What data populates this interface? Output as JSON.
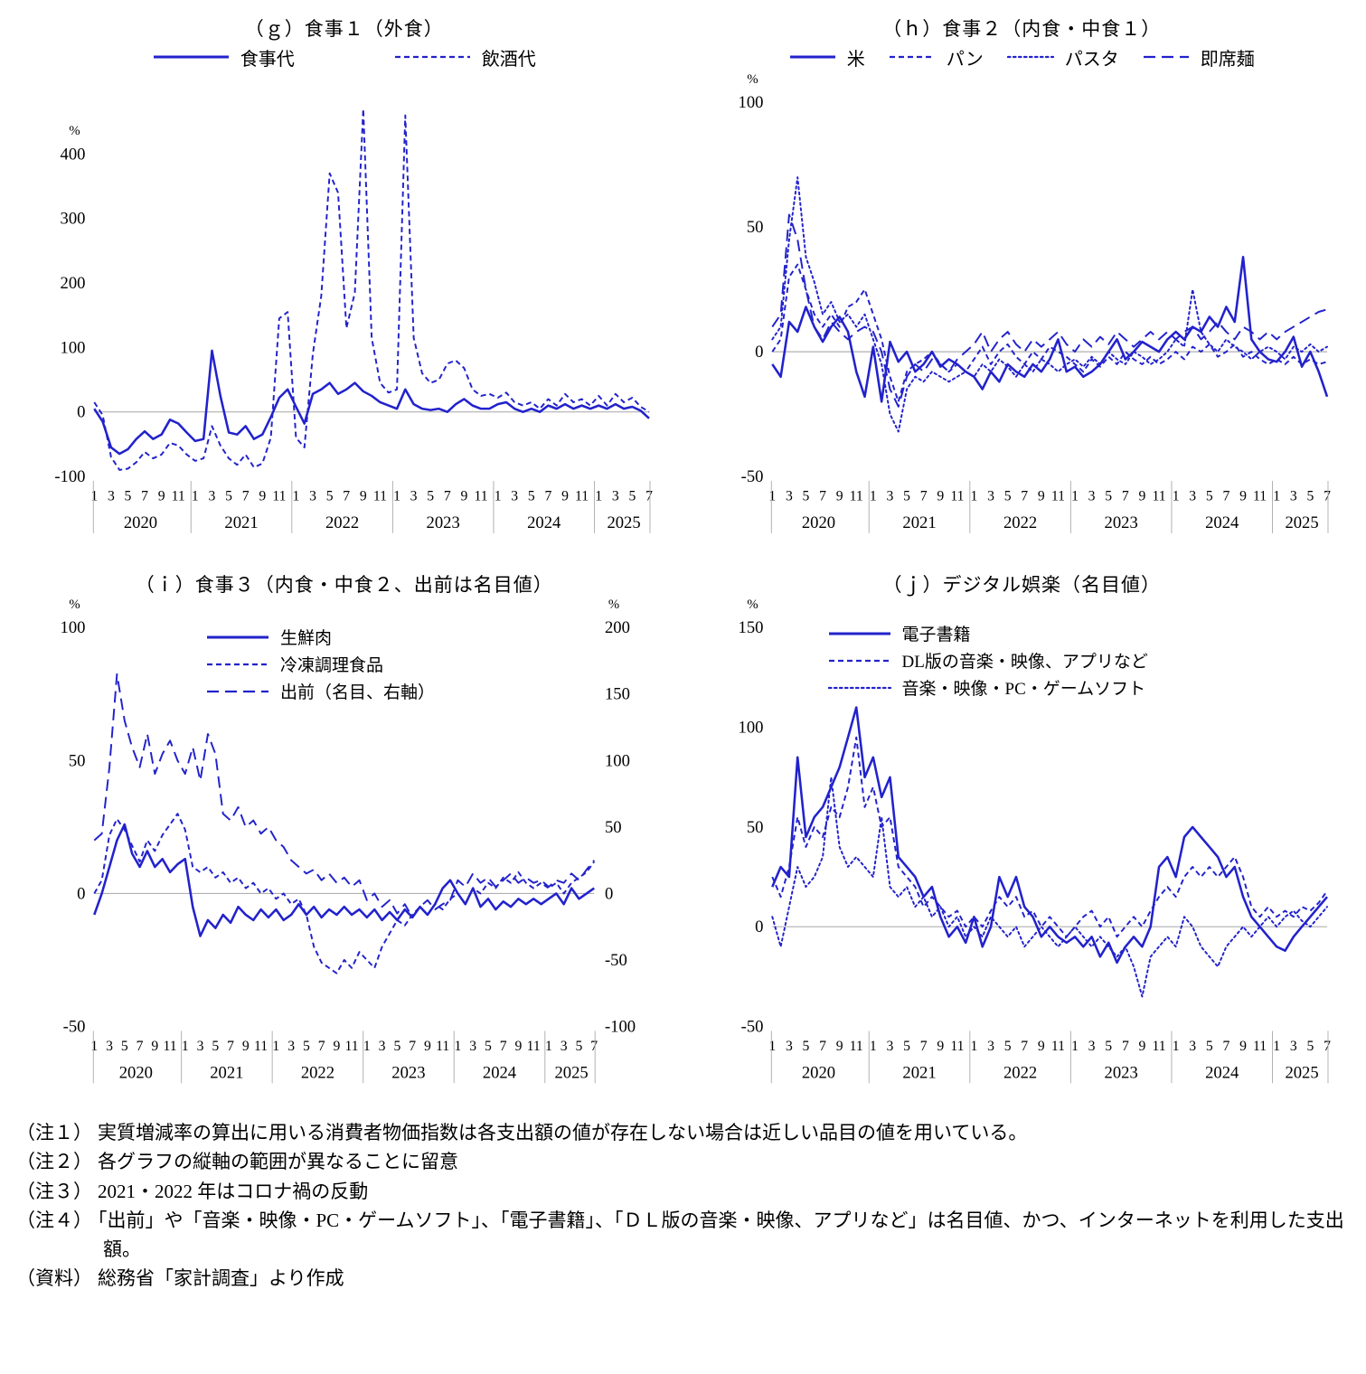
{
  "accent": "#2222cc",
  "grid_color": "#b0b0b0",
  "x_axis": {
    "years": [
      {
        "year": "2020",
        "months": [
          1,
          3,
          5,
          7,
          9,
          11
        ],
        "span": 12
      },
      {
        "year": "2021",
        "months": [
          1,
          3,
          5,
          7,
          9,
          11
        ],
        "span": 12
      },
      {
        "year": "2022",
        "months": [
          1,
          3,
          5,
          7,
          9,
          11
        ],
        "span": 12
      },
      {
        "year": "2023",
        "months": [
          1,
          3,
          5,
          7,
          9,
          11
        ],
        "span": 12
      },
      {
        "year": "2024",
        "months": [
          1,
          3,
          5,
          7,
          9,
          11
        ],
        "span": 12
      },
      {
        "year": "2025",
        "months": [
          1,
          3,
          5,
          7
        ],
        "span": 7
      }
    ]
  },
  "chart_data": [
    {
      "id": "g",
      "type": "line",
      "title": "（ｇ）食事１（外食）",
      "unit": "%",
      "ylim": [
        -100,
        480
      ],
      "yticks": [
        -100,
        0,
        100,
        200,
        300,
        400
      ],
      "legend_position": "top",
      "series": [
        {
          "name": "食事代",
          "style": "solid",
          "axis": "left",
          "values": [
            5,
            -15,
            -55,
            -65,
            -58,
            -42,
            -30,
            -42,
            -35,
            -12,
            -18,
            -32,
            -45,
            -42,
            95,
            25,
            -32,
            -35,
            -22,
            -42,
            -35,
            -8,
            22,
            35,
            8,
            -18,
            28,
            35,
            45,
            28,
            35,
            45,
            32,
            25,
            15,
            10,
            5,
            35,
            12,
            5,
            3,
            5,
            0,
            12,
            20,
            10,
            5,
            5,
            12,
            15,
            5,
            0,
            5,
            0,
            10,
            5,
            12,
            5,
            10,
            5,
            10,
            5,
            12,
            5,
            8,
            2,
            -10
          ]
        },
        {
          "name": "飲酒代",
          "style": "dashed",
          "axis": "left",
          "values": [
            15,
            -5,
            -70,
            -90,
            -88,
            -78,
            -62,
            -72,
            -66,
            -48,
            -52,
            -66,
            -76,
            -72,
            -22,
            -52,
            -72,
            -82,
            -66,
            -86,
            -80,
            -40,
            145,
            155,
            -40,
            -55,
            90,
            180,
            370,
            340,
            130,
            185,
            470,
            115,
            45,
            30,
            35,
            460,
            115,
            60,
            45,
            50,
            75,
            80,
            68,
            35,
            25,
            28,
            22,
            30,
            15,
            10,
            15,
            5,
            20,
            10,
            28,
            15,
            20,
            10,
            25,
            10,
            28,
            15,
            22,
            8,
            0
          ]
        }
      ]
    },
    {
      "id": "h",
      "type": "line",
      "title": "（ｈ）食事２（内食・中食１）",
      "unit": "%",
      "ylim": [
        -50,
        100
      ],
      "yticks": [
        -50,
        0,
        50,
        100
      ],
      "legend_position": "top",
      "series": [
        {
          "name": "米",
          "style": "solid",
          "axis": "left",
          "values": [
            -5,
            -10,
            12,
            8,
            18,
            10,
            4,
            10,
            14,
            8,
            -8,
            -18,
            2,
            -20,
            4,
            -4,
            0,
            -8,
            -5,
            0,
            -6,
            -3,
            -5,
            -8,
            -10,
            -15,
            -8,
            -12,
            -5,
            -8,
            -10,
            -5,
            -8,
            -3,
            5,
            -8,
            -6,
            -10,
            -8,
            -5,
            0,
            5,
            -3,
            0,
            4,
            2,
            0,
            5,
            8,
            5,
            10,
            8,
            14,
            10,
            18,
            12,
            38,
            5,
            0,
            -3,
            -4,
            0,
            6,
            -6,
            0,
            -8,
            -18
          ]
        },
        {
          "name": "パン",
          "style": "dashed",
          "axis": "left",
          "values": [
            0,
            5,
            30,
            35,
            25,
            15,
            10,
            15,
            10,
            18,
            20,
            25,
            15,
            5,
            -10,
            -20,
            -8,
            -5,
            -3,
            0,
            -5,
            -8,
            -5,
            -8,
            -3,
            2,
            -5,
            0,
            3,
            -2,
            -5,
            0,
            -3,
            2,
            0,
            -2,
            -5,
            -8,
            -3,
            -6,
            -2,
            -5,
            0,
            -3,
            -5,
            -2,
            -5,
            -3,
            0,
            -3,
            2,
            0,
            3,
            -2,
            0,
            3,
            -2,
            0,
            -3,
            -5,
            -3,
            -5,
            -2,
            -5,
            -3,
            -5,
            -4
          ]
        },
        {
          "name": "パスタ",
          "style": "dotted",
          "axis": "left",
          "values": [
            5,
            10,
            45,
            70,
            38,
            28,
            15,
            20,
            12,
            15,
            10,
            15,
            5,
            -5,
            -25,
            -32,
            -15,
            -10,
            -12,
            -8,
            -10,
            -12,
            -10,
            -8,
            -10,
            -5,
            -8,
            -3,
            -6,
            -10,
            -5,
            -8,
            -3,
            -5,
            -8,
            -5,
            -3,
            -6,
            -2,
            -5,
            0,
            -3,
            -5,
            0,
            -2,
            -5,
            -3,
            0,
            5,
            2,
            25,
            8,
            3,
            0,
            5,
            2,
            0,
            -3,
            0,
            2,
            0,
            -3,
            2,
            0,
            3,
            0,
            2
          ]
        },
        {
          "name": "即席麺",
          "style": "longdash",
          "axis": "left",
          "values": [
            10,
            15,
            55,
            45,
            25,
            10,
            5,
            12,
            8,
            5,
            8,
            10,
            8,
            0,
            -15,
            -22,
            -10,
            -5,
            -8,
            -3,
            -5,
            -8,
            -3,
            0,
            3,
            8,
            0,
            5,
            8,
            3,
            0,
            5,
            2,
            5,
            8,
            3,
            0,
            5,
            2,
            6,
            3,
            8,
            5,
            2,
            5,
            8,
            5,
            8,
            5,
            8,
            10,
            5,
            8,
            12,
            8,
            5,
            10,
            8,
            5,
            8,
            5,
            8,
            10,
            12,
            14,
            16,
            17
          ]
        }
      ]
    },
    {
      "id": "i",
      "type": "line",
      "title": "（ｉ）食事３（内食・中食２、出前は名目値）",
      "unit": "%",
      "ylim": [
        -50,
        100
      ],
      "yticks": [
        -50,
        0,
        50,
        100
      ],
      "right_unit": "%",
      "right_ylim": [
        -100,
        200
      ],
      "right_yticks": [
        -100,
        -50,
        0,
        50,
        100,
        150,
        200
      ],
      "legend_position": "overlay",
      "series": [
        {
          "name": "生鮮肉",
          "style": "solid",
          "axis": "left",
          "values": [
            -8,
            0,
            10,
            20,
            26,
            15,
            10,
            16,
            10,
            13,
            8,
            11,
            13,
            -5,
            -16,
            -10,
            -13,
            -8,
            -11,
            -5,
            -8,
            -10,
            -6,
            -9,
            -6,
            -10,
            -8,
            -4,
            -8,
            -5,
            -9,
            -6,
            -8,
            -5,
            -8,
            -6,
            -9,
            -6,
            -10,
            -7,
            -10,
            -6,
            -9,
            -5,
            -8,
            -4,
            2,
            5,
            0,
            -4,
            2,
            -5,
            -2,
            -6,
            -3,
            -5,
            -2,
            -4,
            -2,
            -4,
            -2,
            0,
            -4,
            2,
            -2,
            0,
            2
          ]
        },
        {
          "name": "冷凍調理食品",
          "style": "dashed",
          "axis": "left",
          "values": [
            0,
            5,
            22,
            28,
            24,
            18,
            12,
            20,
            16,
            22,
            26,
            30,
            24,
            10,
            8,
            10,
            6,
            8,
            4,
            6,
            2,
            4,
            0,
            2,
            -2,
            0,
            -4,
            -2,
            -8,
            -20,
            -26,
            -28,
            -30,
            -25,
            -28,
            -22,
            -25,
            -28,
            -20,
            -15,
            -10,
            -12,
            -8,
            -5,
            -8,
            -4,
            -6,
            -2,
            0,
            -4,
            2,
            0,
            4,
            2,
            6,
            4,
            8,
            4,
            2,
            4,
            2,
            4,
            0,
            4,
            6,
            8,
            12
          ]
        },
        {
          "name": "出前（名目、右軸）",
          "style": "longdash",
          "axis": "right",
          "values": [
            40,
            45,
            95,
            165,
            130,
            110,
            95,
            120,
            90,
            105,
            115,
            100,
            90,
            110,
            85,
            120,
            105,
            60,
            55,
            65,
            50,
            55,
            45,
            50,
            40,
            35,
            25,
            20,
            15,
            18,
            10,
            15,
            8,
            12,
            5,
            10,
            -5,
            0,
            -10,
            -5,
            -15,
            -8,
            -18,
            -10,
            -5,
            -12,
            -8,
            -5,
            10,
            5,
            15,
            8,
            12,
            5,
            10,
            15,
            8,
            12,
            8,
            10,
            5,
            10,
            8,
            15,
            10,
            18,
            25
          ]
        }
      ]
    },
    {
      "id": "j",
      "type": "line",
      "title": "（ｊ）デジタル娯楽（名目値）",
      "unit": "%",
      "ylim": [
        -50,
        150
      ],
      "yticks": [
        -50,
        0,
        50,
        100,
        150
      ],
      "legend_position": "overlay",
      "series": [
        {
          "name": "電子書籍",
          "style": "solid",
          "axis": "left",
          "values": [
            20,
            30,
            25,
            85,
            45,
            55,
            60,
            70,
            80,
            95,
            110,
            75,
            85,
            65,
            75,
            35,
            30,
            25,
            15,
            20,
            5,
            -5,
            0,
            -8,
            5,
            -10,
            0,
            25,
            15,
            25,
            10,
            5,
            -5,
            0,
            -5,
            -8,
            -5,
            -10,
            -5,
            -15,
            -8,
            -18,
            -10,
            -5,
            -10,
            0,
            30,
            35,
            25,
            45,
            50,
            45,
            40,
            35,
            25,
            30,
            15,
            5,
            0,
            -5,
            -10,
            -12,
            -5,
            0,
            5,
            10,
            15
          ]
        },
        {
          "name": "DL版の音楽・映像、アプリなど",
          "style": "dashed",
          "axis": "left",
          "values": [
            25,
            15,
            30,
            55,
            40,
            50,
            45,
            60,
            55,
            70,
            95,
            60,
            70,
            50,
            55,
            30,
            25,
            20,
            10,
            15,
            10,
            5,
            8,
            0,
            5,
            0,
            8,
            15,
            10,
            15,
            5,
            8,
            0,
            5,
            0,
            -5,
            0,
            5,
            8,
            0,
            5,
            -5,
            0,
            5,
            0,
            8,
            15,
            20,
            15,
            25,
            30,
            25,
            30,
            25,
            30,
            35,
            25,
            10,
            5,
            10,
            5,
            8,
            5,
            10,
            8,
            12,
            18
          ]
        },
        {
          "name": "音楽・映像・PC・ゲームソフト",
          "style": "dotted",
          "axis": "left",
          "values": [
            5,
            -10,
            10,
            30,
            20,
            25,
            35,
            75,
            40,
            30,
            35,
            30,
            25,
            55,
            20,
            15,
            20,
            10,
            15,
            5,
            10,
            0,
            5,
            -5,
            0,
            -5,
            5,
            0,
            -5,
            0,
            -10,
            -5,
            0,
            -5,
            -10,
            -5,
            0,
            -5,
            -10,
            -5,
            -10,
            -15,
            -10,
            -20,
            -35,
            -15,
            -10,
            -5,
            -10,
            5,
            0,
            -10,
            -15,
            -20,
            -10,
            -5,
            0,
            -5,
            0,
            5,
            0,
            5,
            8,
            3,
            0,
            5,
            10
          ]
        }
      ]
    }
  ],
  "notes": [
    {
      "label": "（注１）",
      "text": "実質増減率の算出に用いる消費者物価指数は各支出額の値が存在しない場合は近しい品目の値を用いている。"
    },
    {
      "label": "（注２）",
      "text": "各グラフの縦軸の範囲が異なることに留意"
    },
    {
      "label": "（注３）",
      "text": "2021・2022 年はコロナ禍の反動"
    },
    {
      "label": "（注４）",
      "text": "「出前」や「音楽・映像・PC・ゲームソフト」、「電子書籍」、「ＤＬ版の音楽・映像、アプリなど」は名目値、かつ、インターネットを利用した支出額。"
    },
    {
      "label": "（資料）",
      "text": "総務省「家計調査」より作成"
    }
  ]
}
